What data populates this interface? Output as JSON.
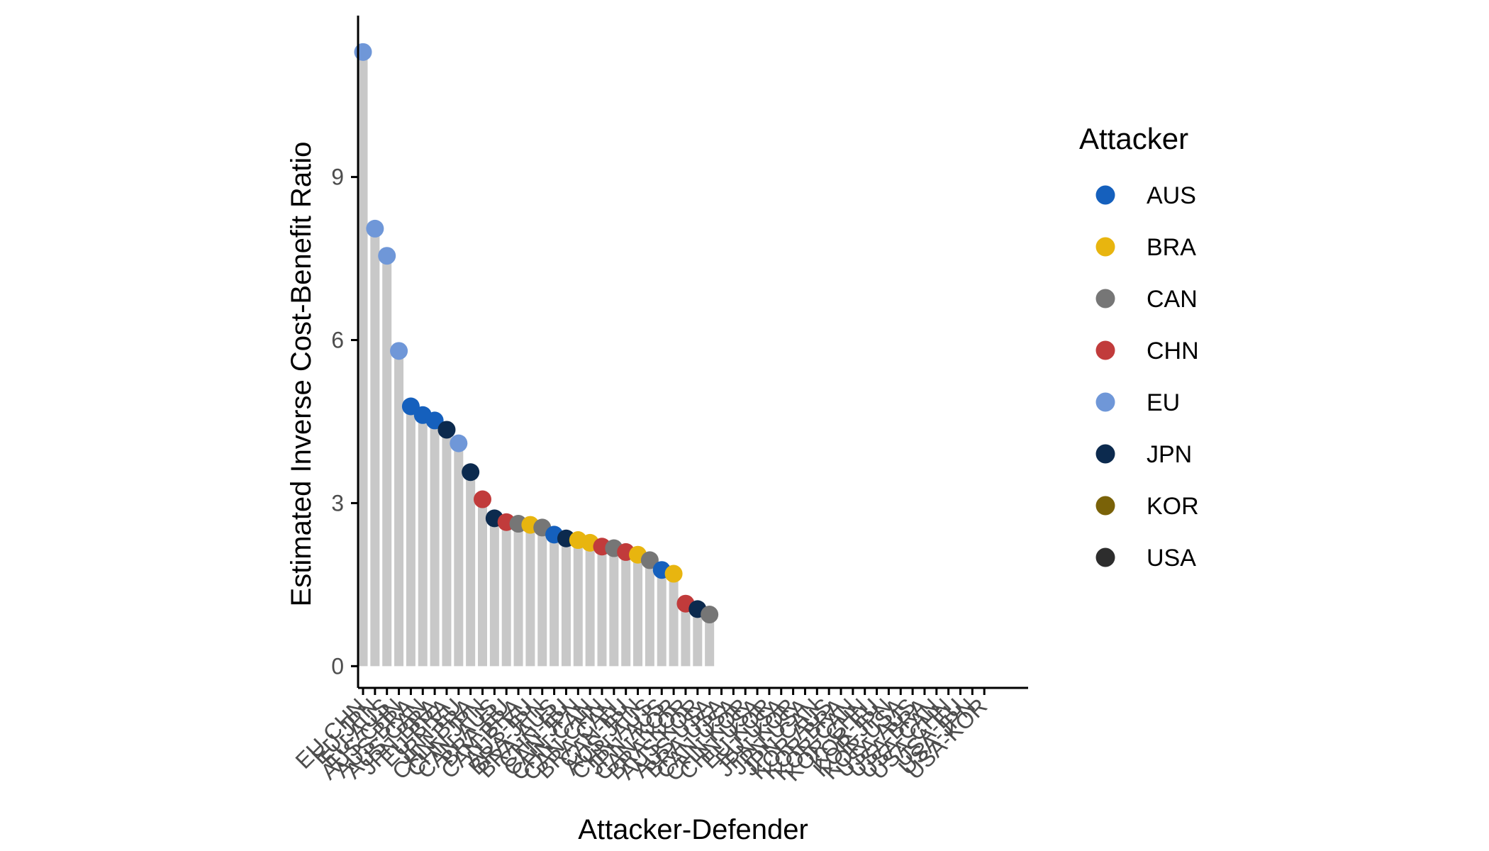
{
  "chart_data": {
    "type": "lollipop",
    "xlabel": "Attacker-Defender",
    "ylabel": "Estimated Inverse Cost-Benefit Ratio",
    "ylim": [
      -0.4,
      11.8
    ],
    "y_ticks": [
      0,
      3,
      6,
      9
    ],
    "legend": {
      "title": "Attacker",
      "placement": "right",
      "entries": [
        {
          "name": "AUS",
          "color": "#1560bd"
        },
        {
          "name": "BRA",
          "color": "#e8b50f"
        },
        {
          "name": "CAN",
          "color": "#767676"
        },
        {
          "name": "CHN",
          "color": "#c13b3b"
        },
        {
          "name": "EU",
          "color": "#6f97d8"
        },
        {
          "name": "JPN",
          "color": "#0c2a4e"
        },
        {
          "name": "KOR",
          "color": "#7a6208"
        },
        {
          "name": "USA",
          "color": "#2d2d2d"
        }
      ]
    },
    "points": [
      {
        "attacker": "EU",
        "value": 11.3
      },
      {
        "attacker": "EU",
        "value": 8.05
      },
      {
        "attacker": "EU",
        "value": 7.55
      },
      {
        "attacker": "EU",
        "value": 5.8
      },
      {
        "attacker": "AUS",
        "value": 4.78
      },
      {
        "attacker": "AUS",
        "value": 4.62
      },
      {
        "attacker": "AUS",
        "value": 4.52
      },
      {
        "attacker": "JPN",
        "value": 4.35
      },
      {
        "attacker": "EU",
        "value": 4.1
      },
      {
        "attacker": "JPN",
        "value": 3.57
      },
      {
        "attacker": "CHN",
        "value": 3.07
      },
      {
        "attacker": "JPN",
        "value": 2.72
      },
      {
        "attacker": "CHN",
        "value": 2.65
      },
      {
        "attacker": "CAN",
        "value": 2.62
      },
      {
        "attacker": "BRA",
        "value": 2.6
      },
      {
        "attacker": "CAN",
        "value": 2.55
      },
      {
        "attacker": "AUS",
        "value": 2.42
      },
      {
        "attacker": "JPN",
        "value": 2.35
      },
      {
        "attacker": "BRA",
        "value": 2.32
      },
      {
        "attacker": "BRA",
        "value": 2.27
      },
      {
        "attacker": "CHN",
        "value": 2.2
      },
      {
        "attacker": "CAN",
        "value": 2.17
      },
      {
        "attacker": "CHN",
        "value": 2.1
      },
      {
        "attacker": "BRA",
        "value": 2.05
      },
      {
        "attacker": "CAN",
        "value": 1.95
      },
      {
        "attacker": "AUS",
        "value": 1.77
      },
      {
        "attacker": "BRA",
        "value": 1.7
      },
      {
        "attacker": "CHN",
        "value": 1.15
      },
      {
        "attacker": "JPN",
        "value": 1.05
      },
      {
        "attacker": "CAN",
        "value": 0.95
      }
    ],
    "x_tick_labels": [
      "EU-CHN",
      "EU-JPN",
      "EU-AUS",
      "AUS-CHN",
      "AUS-BRA",
      "AUS-CAN",
      "JPN-BRA",
      "EU-BRA",
      "JPN-EU",
      "CHN-BRA",
      "CHN-JPN",
      "CAN-AUS",
      "BRA-EU",
      "CAN-BRA",
      "AUS-EU",
      "BRA-JPN",
      "BRA-AUS",
      "CHN-EU",
      "CAN-JPN",
      "CHN-CAN",
      "CAN-CHN",
      "BRA-CAN",
      "CAN-EU",
      "AUS-JPN",
      "CHN-AUS",
      "JPN-AUS",
      "CAN-KOR",
      "BRA-KOR",
      "AUS-KOR",
      "AUS-USA",
      "BRA-USA",
      "CAN-USA",
      "CHN-KOR",
      "CHN-USA",
      "EU-KOR",
      "EU-USA",
      "JPN-KOR",
      "JPN-USA",
      "JPN-CAN",
      "KOR-AUS",
      "KOR-BRA",
      "KOR-CAN",
      "KOR-CHN",
      "KOR-EU",
      "KOR-JPN",
      "KOR-USA",
      "USA-AUS",
      "USA-BRA",
      "USA-CAN",
      "USA-CHN",
      "USA-EU",
      "USA-JPN",
      "USA-KOR"
    ]
  }
}
